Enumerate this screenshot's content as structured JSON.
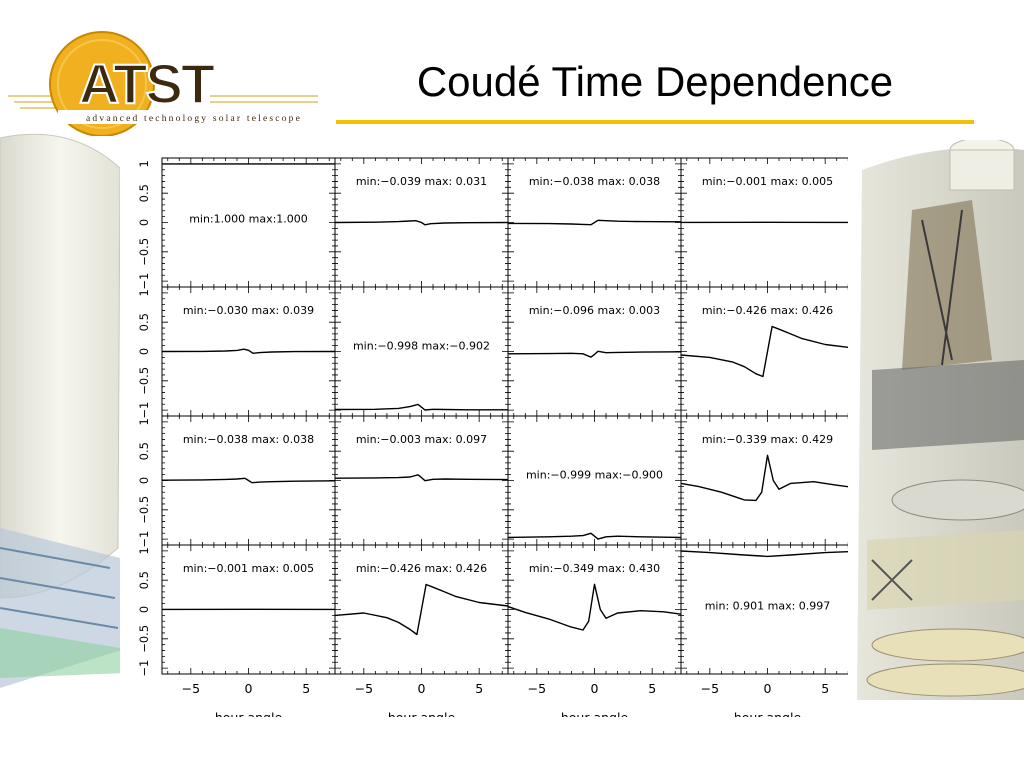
{
  "slide": {
    "title": "Coudé Time Dependence"
  },
  "logo": {
    "name": "ATST",
    "tagline": "advanced technology solar telescope"
  },
  "colors": {
    "accent": "#f2c200",
    "logo_circle": "#f0b020",
    "curve": "#000000"
  },
  "chart_data": {
    "type": "line",
    "layout": "4x4 matrix",
    "xlabel": "hour angle",
    "x_ticks": [
      -5,
      0,
      5
    ],
    "y_ticks": [
      -1,
      -0.5,
      0,
      0.5,
      1
    ],
    "y_tick_labels": [
      "−1",
      "−0.5",
      "0",
      "0.5",
      "1"
    ],
    "x_tick_labels": [
      "−5",
      "0",
      "5"
    ],
    "xlim": [
      -7.5,
      7.5
    ],
    "ylim": [
      -1.1,
      1.1
    ],
    "panels": [
      {
        "row": 0,
        "col": 0,
        "label": "min:1.000  max:1.000",
        "min": 1.0,
        "max": 1.0,
        "x": [
          -7.5,
          7.5
        ],
        "y": [
          1.0,
          1.0
        ]
      },
      {
        "row": 0,
        "col": 1,
        "label": "min:−0.039  max: 0.031",
        "min": -0.039,
        "max": 0.031,
        "x": [
          -7.5,
          -4,
          -2,
          -1,
          -0.5,
          0,
          0.3,
          0.8,
          2,
          4,
          7.5
        ],
        "y": [
          0.0,
          0.005,
          0.015,
          0.025,
          0.031,
          0.0,
          -0.039,
          -0.02,
          -0.008,
          -0.003,
          0.0
        ]
      },
      {
        "row": 0,
        "col": 2,
        "label": "min:−0.038  max: 0.038",
        "min": -0.038,
        "max": 0.038,
        "x": [
          -7.5,
          -4,
          -2,
          -1,
          -0.3,
          0,
          0.3,
          1,
          2,
          4,
          7.5
        ],
        "y": [
          -0.015,
          -0.018,
          -0.025,
          -0.032,
          -0.038,
          0.0,
          0.038,
          0.03,
          0.022,
          0.015,
          0.012
        ]
      },
      {
        "row": 0,
        "col": 3,
        "label": "min:−0.001  max: 0.005",
        "min": -0.001,
        "max": 0.005,
        "x": [
          -7.5,
          0,
          7.5
        ],
        "y": [
          0.002,
          0.003,
          0.002
        ]
      },
      {
        "row": 1,
        "col": 0,
        "label": "min:−0.030  max: 0.039",
        "min": -0.03,
        "max": 0.039,
        "x": [
          -7.5,
          -4,
          -2,
          -1,
          -0.4,
          0,
          0.4,
          1,
          2,
          4,
          7.5
        ],
        "y": [
          0.0,
          0.002,
          0.008,
          0.018,
          0.039,
          0.02,
          -0.03,
          -0.018,
          -0.008,
          -0.002,
          0.0
        ]
      },
      {
        "row": 1,
        "col": 1,
        "label": "min:−0.998  max:−0.902",
        "min": -0.998,
        "max": -0.902,
        "x": [
          -7.5,
          -4,
          -2,
          -1,
          -0.3,
          0,
          0.3,
          1,
          2,
          4,
          7.5
        ],
        "y": [
          -0.99,
          -0.985,
          -0.97,
          -0.94,
          -0.902,
          -0.95,
          -0.998,
          -0.985,
          -0.99,
          -0.995,
          -0.995
        ]
      },
      {
        "row": 1,
        "col": 2,
        "label": "min:−0.096  max: 0.003",
        "min": -0.096,
        "max": 0.003,
        "x": [
          -7.5,
          -4,
          -2,
          -1,
          -0.3,
          0,
          0.3,
          1,
          2,
          4,
          7.5
        ],
        "y": [
          -0.04,
          -0.035,
          -0.03,
          -0.04,
          -0.096,
          -0.05,
          0.003,
          -0.02,
          -0.015,
          -0.01,
          -0.005
        ]
      },
      {
        "row": 1,
        "col": 3,
        "label": "min:−0.426  max: 0.426",
        "min": -0.426,
        "max": 0.426,
        "x": [
          -7.5,
          -5,
          -3,
          -2,
          -1,
          -0.4,
          0,
          0.4,
          1,
          2,
          3,
          5,
          7.5
        ],
        "y": [
          -0.06,
          -0.1,
          -0.18,
          -0.26,
          -0.38,
          -0.426,
          0.0,
          0.426,
          0.38,
          0.3,
          0.22,
          0.12,
          0.06
        ]
      },
      {
        "row": 2,
        "col": 0,
        "label": "min:−0.038  max: 0.038",
        "min": -0.038,
        "max": 0.038,
        "x": [
          -7.5,
          -4,
          -2,
          -1,
          -0.3,
          0,
          0.3,
          1,
          2,
          4,
          7.5
        ],
        "y": [
          0.005,
          0.01,
          0.018,
          0.025,
          0.038,
          0.0,
          -0.038,
          -0.028,
          -0.02,
          -0.012,
          -0.005
        ]
      },
      {
        "row": 2,
        "col": 1,
        "label": "min:−0.003  max: 0.097",
        "min": -0.003,
        "max": 0.097,
        "x": [
          -7.5,
          -4,
          -2,
          -1,
          -0.3,
          0,
          0.3,
          1,
          2,
          4,
          7.5
        ],
        "y": [
          0.04,
          0.045,
          0.05,
          0.06,
          0.097,
          0.05,
          -0.003,
          0.02,
          0.025,
          0.02,
          0.015
        ]
      },
      {
        "row": 2,
        "col": 2,
        "label": "min:−0.999  max:−0.900",
        "min": -0.999,
        "max": -0.9,
        "x": [
          -7.5,
          -4,
          -2,
          -1,
          -0.3,
          0,
          0.3,
          1,
          2,
          4,
          7.5
        ],
        "y": [
          -0.97,
          -0.96,
          -0.95,
          -0.94,
          -0.9,
          -0.95,
          -0.999,
          -0.96,
          -0.95,
          -0.96,
          -0.97
        ]
      },
      {
        "row": 2,
        "col": 3,
        "label": "min:−0.339  max: 0.429",
        "min": -0.339,
        "max": 0.429,
        "x": [
          -7.5,
          -6,
          -4,
          -2,
          -1,
          -0.5,
          0,
          0.5,
          1,
          2,
          4,
          6,
          7.5
        ],
        "y": [
          -0.05,
          -0.1,
          -0.2,
          -0.33,
          -0.339,
          -0.2,
          0.429,
          0.0,
          -0.15,
          -0.05,
          -0.02,
          -0.08,
          -0.12
        ]
      },
      {
        "row": 3,
        "col": 0,
        "label": "min:−0.001  max: 0.005",
        "min": -0.001,
        "max": 0.005,
        "x": [
          -7.5,
          0,
          7.5
        ],
        "y": [
          0.002,
          0.003,
          0.002
        ]
      },
      {
        "row": 3,
        "col": 1,
        "label": "min:−0.426  max: 0.426",
        "min": -0.426,
        "max": 0.426,
        "x": [
          -7.5,
          -5,
          -3,
          -2,
          -1,
          -0.4,
          0,
          0.4,
          1,
          2,
          3,
          5,
          7.5
        ],
        "y": [
          -0.1,
          -0.06,
          -0.14,
          -0.22,
          -0.34,
          -0.426,
          0.0,
          0.426,
          0.38,
          0.3,
          0.22,
          0.12,
          0.06
        ]
      },
      {
        "row": 3,
        "col": 2,
        "label": "min:−0.349  max: 0.430",
        "min": -0.349,
        "max": 0.43,
        "x": [
          -7.5,
          -6,
          -4,
          -2,
          -1,
          -0.5,
          0,
          0.5,
          1,
          2,
          4,
          6,
          7.5
        ],
        "y": [
          0.05,
          -0.05,
          -0.16,
          -0.3,
          -0.349,
          -0.2,
          0.43,
          0.0,
          -0.15,
          -0.06,
          -0.02,
          -0.04,
          -0.08
        ]
      },
      {
        "row": 3,
        "col": 3,
        "label": "min: 0.901  max: 0.997",
        "min": 0.901,
        "max": 0.997,
        "x": [
          -7.5,
          -5,
          -2,
          0,
          2,
          5,
          7.5
        ],
        "y": [
          0.997,
          0.97,
          0.93,
          0.905,
          0.93,
          0.97,
          0.99
        ]
      }
    ]
  }
}
